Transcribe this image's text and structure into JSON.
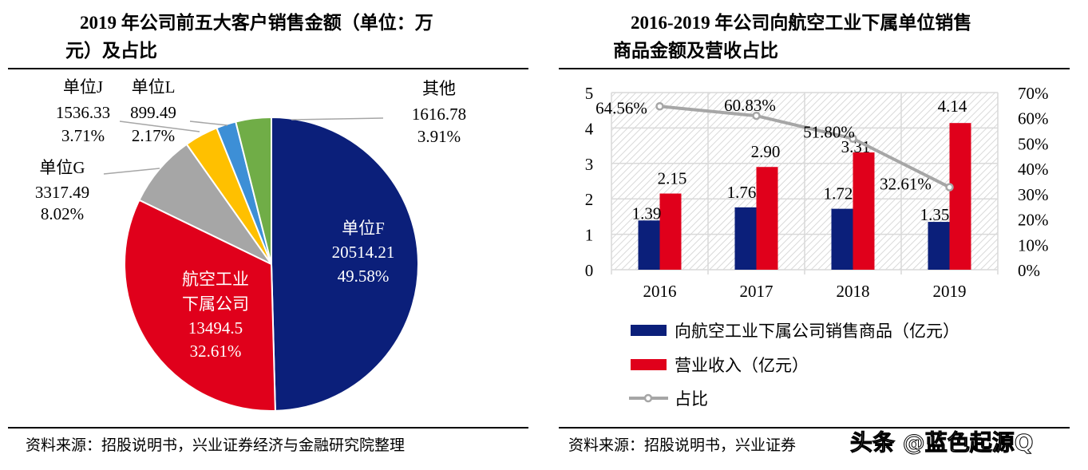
{
  "left": {
    "title_line1": "2019 年公司前五大客户销售金额（单位：万",
    "title_line2": "元）及占比",
    "source": "资料来源：招股说明书，兴业证券经济与金融研究院整理"
  },
  "right": {
    "title_line1": "2016-2019 年公司向航空工业下属单位销售",
    "title_line2": "商品金额及营收占比",
    "source": "资料来源：招股说明书，兴业证券"
  },
  "watermark": "头条 @蓝色起源Q",
  "chart_data": [
    {
      "type": "pie",
      "slices": [
        {
          "label": "单位F",
          "value": 20514.21,
          "percent": "49.58%",
          "color": "#0b1f7a"
        },
        {
          "label": "航空工业下属公司",
          "value": 13494.5,
          "percent": "32.61%",
          "color": "#e0001b"
        },
        {
          "label": "单位G",
          "value": 3317.49,
          "percent": "8.02%",
          "color": "#a6a6a6"
        },
        {
          "label": "单位J",
          "value": 1536.33,
          "percent": "3.71%",
          "color": "#ffc000"
        },
        {
          "label": "单位L",
          "value": 899.49,
          "percent": "2.17%",
          "color": "#3d8fd6"
        },
        {
          "label": "其他",
          "value": 1616.78,
          "percent": "3.91%",
          "color": "#70ad47"
        }
      ]
    },
    {
      "type": "bar",
      "categories": [
        "2016",
        "2017",
        "2018",
        "2019"
      ],
      "series": [
        {
          "name": "向航空工业下属公司销售商品（亿元）",
          "values": [
            1.39,
            1.76,
            1.72,
            1.35
          ],
          "labels": [
            "1.39",
            "1.76",
            "1.72",
            "1.35"
          ],
          "color": "#0b1f7a"
        },
        {
          "name": "营业收入（亿元）",
          "values": [
            2.15,
            2.9,
            3.31,
            4.14
          ],
          "labels": [
            "2.15",
            "2.90",
            "3.31",
            "4.14"
          ],
          "color": "#e0001b"
        },
        {
          "name": "占比",
          "type": "line",
          "axis": "right",
          "values": [
            64.56,
            60.83,
            51.8,
            32.61
          ],
          "labels": [
            "64.56%",
            "60.83%",
            "51.80%",
            "32.61%"
          ],
          "color": "#a6a6a6"
        }
      ],
      "ylim": [
        0,
        5
      ],
      "yticks": [
        "0",
        "1",
        "2",
        "3",
        "4",
        "5"
      ],
      "y2lim": [
        0,
        70
      ],
      "y2ticks": [
        "0%",
        "10%",
        "20%",
        "30%",
        "40%",
        "50%",
        "60%",
        "70%"
      ],
      "grid": true,
      "legend": "bottom"
    }
  ]
}
